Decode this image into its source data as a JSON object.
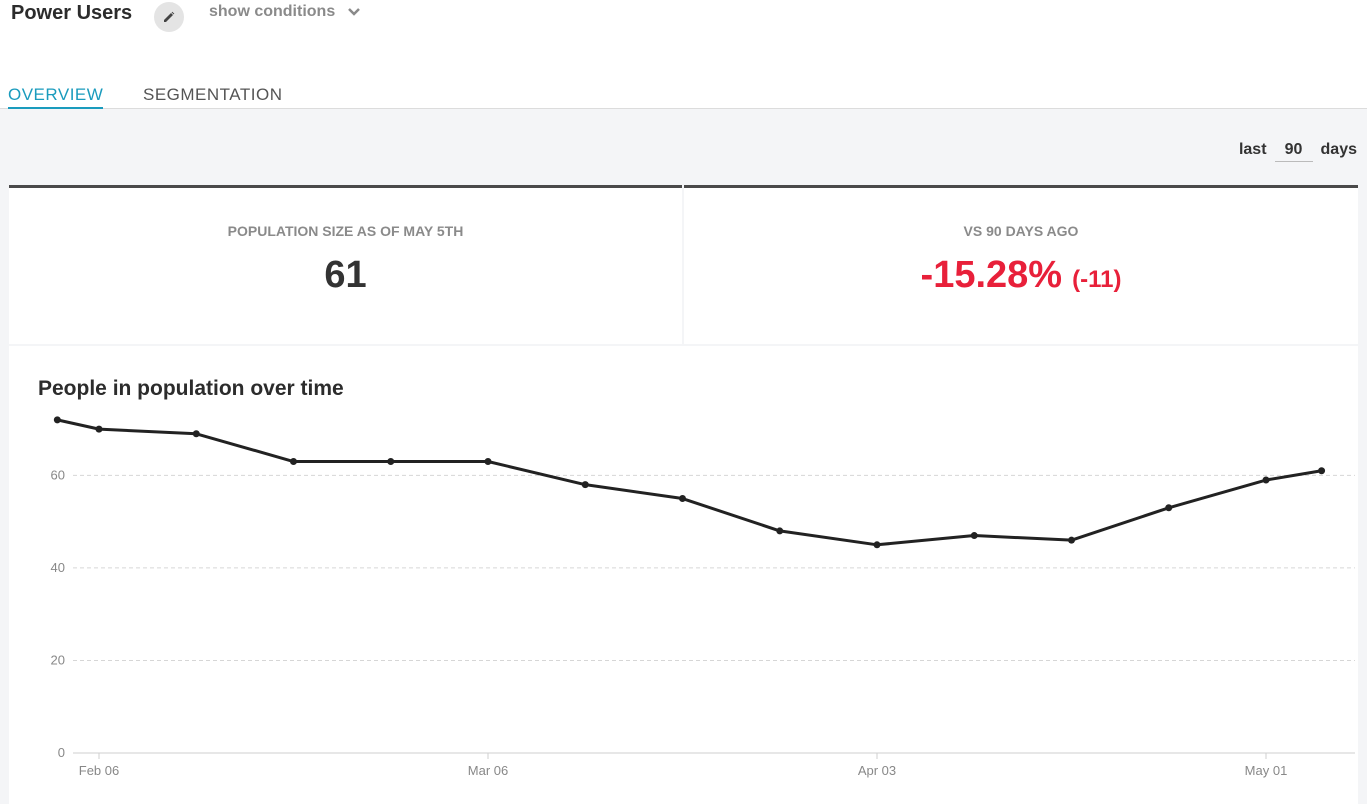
{
  "header": {
    "title": "Power Users",
    "show_conditions_label": "show conditions"
  },
  "tabs": [
    {
      "label": "OVERVIEW",
      "active": true
    },
    {
      "label": "SEGMENTATION",
      "active": false
    }
  ],
  "range": {
    "prefix": "last",
    "value": "90",
    "suffix": "days"
  },
  "stats": {
    "population": {
      "label": "POPULATION SIZE AS OF MAY 5TH",
      "value": "61"
    },
    "change": {
      "label": "VS 90 DAYS AGO",
      "value": "-15.28%",
      "delta": "(-11)"
    }
  },
  "colors": {
    "accent": "#1a9bbd",
    "negative": "#e8203a",
    "line": "#222222"
  },
  "icons": {
    "edit": "pencil-icon",
    "dropdown": "chevron-down-icon"
  },
  "chart_data": {
    "type": "line",
    "title": "People in population over time",
    "xlabel": "",
    "ylabel": "",
    "ylim": [
      0,
      75
    ],
    "yticks": [
      0,
      20,
      40,
      60
    ],
    "xtick_labels": [
      "Feb 06",
      "Mar 06",
      "Apr 03",
      "May 01"
    ],
    "grid": true,
    "series": [
      {
        "x": [
          "Feb 03",
          "Feb 06",
          "Feb 13",
          "Feb 20",
          "Feb 27",
          "Mar 06",
          "Mar 13",
          "Mar 20",
          "Mar 27",
          "Apr 03",
          "Apr 10",
          "Apr 17",
          "Apr 24",
          "May 01",
          "May 05"
        ],
        "values": [
          72,
          70,
          69,
          63,
          63,
          63,
          58,
          55,
          48,
          45,
          47,
          46,
          53,
          59,
          61
        ]
      }
    ]
  }
}
